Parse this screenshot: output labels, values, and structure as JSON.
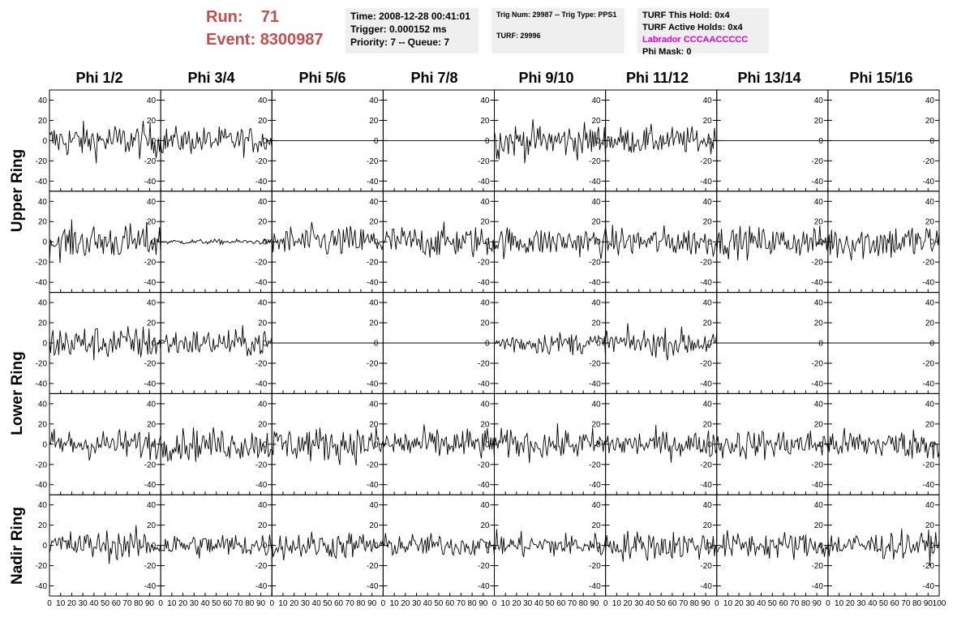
{
  "header": {
    "run_label": "Run:",
    "run_value": "71",
    "event_label": "Event:",
    "event_value": "8300987"
  },
  "time_box": {
    "time": "Time: 2008-12-28 00:41:01",
    "trigger": "Trigger: 0.000152 ms",
    "priority": "Priority: 7 -- Queue: 7"
  },
  "trig_box": {
    "trig": "Trig Num: 29987 -- Trig Type: PPS1",
    "turf": "TURF: 29996"
  },
  "turf_box": {
    "this_hold": "TURF This Hold: 0x4",
    "active_holds": "TURF Active Holds: 0x4",
    "labrador": "Labrador CCCAACCCCC",
    "phi_mask": "Phi Mask: 0"
  },
  "columns": [
    "Phi 1/2",
    "Phi 3/4",
    "Phi 5/6",
    "Phi 7/8",
    "Phi 9/10",
    "Phi 11/12",
    "Phi 13/14",
    "Phi 15/16"
  ],
  "rings": [
    "Upper Ring",
    "Lower Ring",
    "Nadir Ring"
  ],
  "colors": {
    "trace": "#000000",
    "frame": "#000000",
    "labrador": "#e000e0",
    "run": "#c0504d",
    "box": "#efefef"
  },
  "chart_data": {
    "type": "line",
    "rows": 5,
    "cols": 8,
    "xlim": [
      0,
      100
    ],
    "ylim": [
      -50,
      50
    ],
    "x_ticks": [
      0,
      10,
      20,
      30,
      40,
      50,
      60,
      70,
      80,
      90,
      100
    ],
    "y_ticks": [
      -40,
      -20,
      0,
      20,
      40
    ],
    "samples": 96,
    "panel_amplitude": [
      [
        14,
        11,
        0,
        0,
        14,
        11,
        0,
        0
      ],
      [
        14,
        2,
        13,
        13,
        12,
        12,
        12,
        15
      ],
      [
        14,
        11,
        0,
        0,
        9,
        11,
        0,
        0
      ],
      [
        12,
        13,
        14,
        13,
        12,
        11,
        12,
        12
      ],
      [
        12,
        10,
        11,
        9,
        10,
        12,
        11,
        11
      ]
    ]
  }
}
